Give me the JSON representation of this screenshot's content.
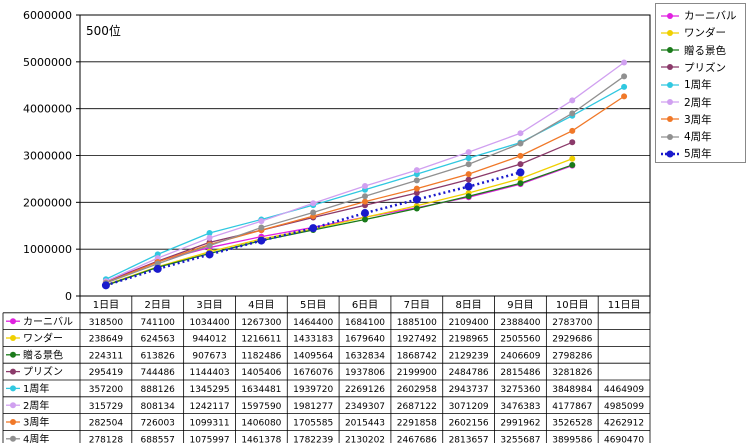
{
  "chart_data": {
    "type": "line",
    "annotation": "500位",
    "categories": [
      "1日目",
      "2日目",
      "3日目",
      "4日目",
      "5日目",
      "6日目",
      "7日目",
      "8日目",
      "9日目",
      "10日目",
      "11日目"
    ],
    "y_ticks": [
      "0",
      "1000000",
      "2000000",
      "3000000",
      "4000000",
      "5000000",
      "6000000"
    ],
    "ylim": [
      0,
      6000000
    ],
    "legend_position": "right",
    "series": [
      {
        "name": "カーニバル",
        "color": "#e020e0",
        "marker": "circle",
        "dashed": false,
        "values": [
          318500,
          741100,
          1034400,
          1267300,
          1464400,
          1684100,
          1885100,
          2109400,
          2388400,
          2783700,
          null
        ]
      },
      {
        "name": "ワンダー",
        "color": "#f0d000",
        "marker": "circle",
        "dashed": false,
        "values": [
          238649,
          624563,
          944012,
          1216611,
          1433183,
          1679640,
          1927492,
          2198965,
          2505560,
          2929686,
          null
        ]
      },
      {
        "name": "贈る景色",
        "color": "#1a7a1a",
        "marker": "circle",
        "dashed": false,
        "values": [
          224311,
          613826,
          907673,
          1182486,
          1409564,
          1632834,
          1868742,
          2129239,
          2406609,
          2798286,
          null
        ]
      },
      {
        "name": "プリズン",
        "color": "#8b3a6a",
        "marker": "circle",
        "dashed": false,
        "values": [
          295419,
          744486,
          1144403,
          1405406,
          1676076,
          1937806,
          2199900,
          2484786,
          2815486,
          3281826,
          null
        ]
      },
      {
        "name": "1周年",
        "color": "#30c8e0",
        "marker": "circle",
        "dashed": false,
        "values": [
          357200,
          888126,
          1345295,
          1634481,
          1939720,
          2269126,
          2602958,
          2943737,
          3275360,
          3848984,
          4464909
        ]
      },
      {
        "name": "2周年",
        "color": "#d0a0f0",
        "marker": "circle",
        "dashed": false,
        "values": [
          315729,
          808134,
          1242117,
          1597590,
          1981277,
          2349307,
          2687122,
          3071209,
          3476383,
          4177867,
          4985099
        ]
      },
      {
        "name": "3周年",
        "color": "#f07828",
        "marker": "circle",
        "dashed": false,
        "values": [
          282504,
          726003,
          1099311,
          1406080,
          1705585,
          2015443,
          2291858,
          2602156,
          2991962,
          3526528,
          4262912
        ]
      },
      {
        "name": "4周年",
        "color": "#909090",
        "marker": "circle",
        "dashed": false,
        "values": [
          278128,
          688557,
          1075997,
          1461378,
          1782239,
          2130202,
          2467686,
          2813657,
          3255687,
          3899586,
          4690470
        ]
      },
      {
        "name": "5周年",
        "color": "#1a1acc",
        "marker": "circle",
        "dashed": true,
        "values": [
          227433,
          579349,
          886698,
          1182753,
          1449091,
          1771077,
          2059085,
          2336836,
          2639608,
          null,
          null
        ]
      }
    ]
  }
}
